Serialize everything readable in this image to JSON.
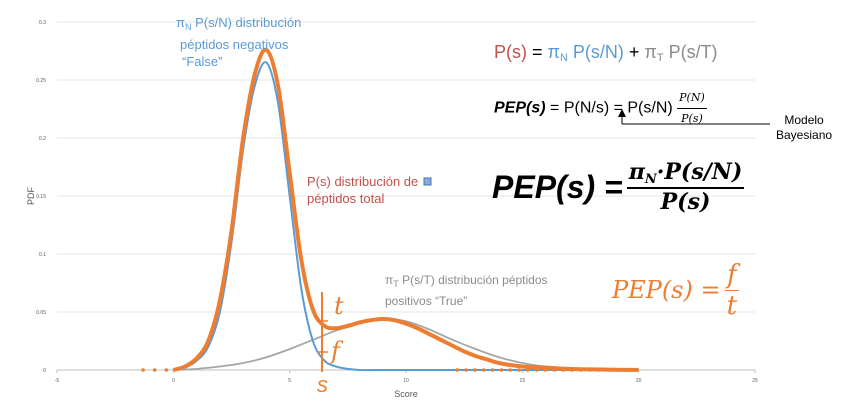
{
  "chart_data": {
    "type": "line",
    "xlabel": "Score",
    "ylabel": "PDF",
    "xlim": [
      -5,
      25
    ],
    "ylim": [
      0,
      0.3
    ],
    "x_ticks": [
      "-5",
      "0",
      "5",
      "10",
      "15",
      "20",
      "25"
    ],
    "y_ticks": [
      "0",
      "0.05",
      "0.1",
      "0.15",
      "0.2",
      "0.25",
      "0.3"
    ],
    "series": [
      {
        "name": "P(s)",
        "color": "#ed7d31",
        "x": [
          0,
          0.5,
          1,
          1.5,
          2,
          2.5,
          3,
          3.5,
          4,
          4.5,
          5,
          5.5,
          6,
          6.5,
          7,
          7.5,
          8,
          8.5,
          9,
          9.5,
          10,
          10.5,
          11,
          11.5,
          12,
          12.5,
          13,
          13.5,
          14,
          15,
          16,
          17,
          18,
          19,
          20
        ],
        "y": [
          0,
          0.003,
          0.01,
          0.025,
          0.06,
          0.12,
          0.2,
          0.255,
          0.276,
          0.245,
          0.17,
          0.095,
          0.052,
          0.038,
          0.036,
          0.038,
          0.041,
          0.043,
          0.044,
          0.043,
          0.04,
          0.036,
          0.031,
          0.026,
          0.021,
          0.016,
          0.012,
          0.009,
          0.006,
          0.003,
          0.002,
          0.001,
          0.0005,
          0.0002,
          0.0001
        ]
      },
      {
        "name": "πN P(s/N)",
        "color": "#5b9bd5",
        "x": [
          0,
          0.5,
          1,
          1.5,
          2,
          2.5,
          3,
          3.5,
          4,
          4.5,
          5,
          5.5,
          6,
          6.5,
          7,
          7.5,
          8,
          9,
          10,
          12,
          15,
          20
        ],
        "y": [
          0,
          0.002,
          0.008,
          0.02,
          0.05,
          0.11,
          0.19,
          0.245,
          0.265,
          0.23,
          0.15,
          0.07,
          0.025,
          0.008,
          0.003,
          0.001,
          0,
          0,
          0,
          0,
          0,
          0
        ]
      },
      {
        "name": "πT P(s/T)",
        "color": "#a6a6a6",
        "x": [
          0,
          1,
          2,
          3,
          4,
          5,
          6,
          7,
          8,
          9,
          10,
          11,
          12,
          13,
          14,
          15,
          16,
          17,
          18,
          19,
          20
        ],
        "y": [
          0,
          0.001,
          0.003,
          0.006,
          0.011,
          0.018,
          0.026,
          0.034,
          0.04,
          0.044,
          0.042,
          0.035,
          0.026,
          0.018,
          0.011,
          0.006,
          0.003,
          0.0015,
          0.0007,
          0.0003,
          0.0001
        ]
      }
    ]
  },
  "annotations": {
    "neg_line1_pi": "π",
    "neg_line1_sub": "N",
    "neg_line1_rest": " P(s/N) distribución",
    "neg_line2": "péptidos negativos",
    "neg_line3": "“False”",
    "total_line1": "P(s) distribución de",
    "total_line2": "péptidos total",
    "pos_line1_pi": "π",
    "pos_line1_sub": "T",
    "pos_line1_rest": " P(s/T) distribución péptidos",
    "pos_line2": "positivos “True”",
    "t_label": "t",
    "f_label": "f",
    "s_label": "s",
    "model_line1": "Modelo",
    "model_line2": "Bayesiano"
  },
  "formulas": {
    "eq1_lhs": "P(s)",
    "eq1_eq": " = ",
    "eq1_pi1": "π",
    "eq1_sub1": "N",
    "eq1_term1": " P(s/N)",
    "eq1_plus": " + ",
    "eq1_pi2": "π",
    "eq1_sub2": "T",
    "eq1_term2": " P(s/T)",
    "eq2_lhs": "PEP(s)",
    "eq2_mid": " = P(N/s) = P(s/N) ",
    "eq2_num": "P(N)",
    "eq2_den": "P(s)",
    "eq3_lhs": "PEP(s) = ",
    "eq3_num": "π",
    "eq3_num_sub": "N",
    "eq3_num_rest": "·P(s/N)",
    "eq3_den": "P(s)",
    "eq4_lhs": "PEP(s) = ",
    "eq4_num": "f",
    "eq4_den": "t"
  }
}
